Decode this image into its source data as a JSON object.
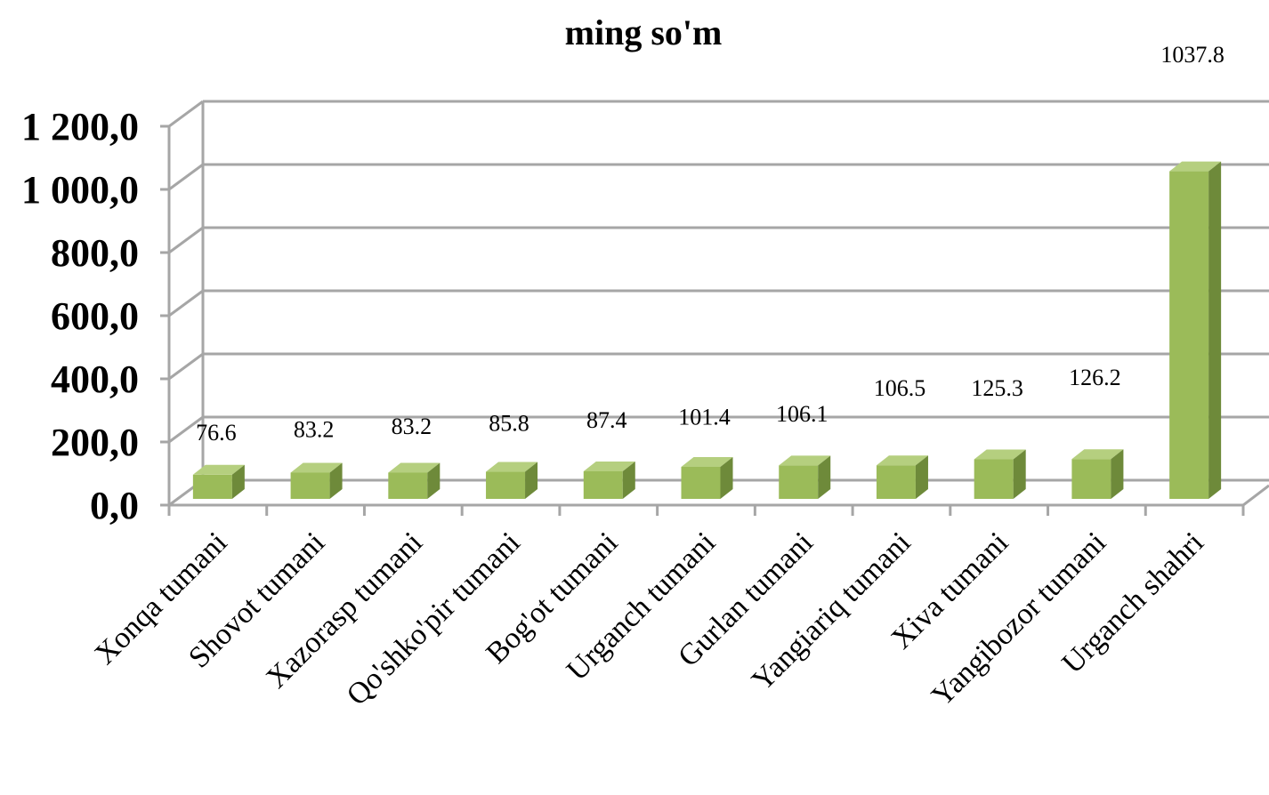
{
  "chart_data": {
    "type": "bar",
    "title": "ming so'm",
    "categories": [
      "Xonqa tumani",
      "Shovot tumani",
      "Xazorasp tumani",
      "Qo'shko'pir tumani",
      "Bog'ot tumani",
      "Urganch tumani",
      "Gurlan tumani",
      "Yangiariq tumani",
      "Xiva tumani",
      "Yangibozor tumani",
      "Urganch shahri"
    ],
    "values": [
      76.6,
      83.2,
      83.2,
      85.8,
      87.4,
      101.4,
      106.1,
      106.5,
      125.3,
      126.2,
      1037.8
    ],
    "data_labels": [
      "76.6",
      "83.2",
      "83.2",
      "85.8",
      "87.4",
      "101.4",
      "106.1",
      "106.5",
      "125.3",
      "126.2",
      "1037.8"
    ],
    "y_ticks": [
      0,
      200,
      400,
      600,
      800,
      1000,
      1200
    ],
    "y_tick_labels": [
      "0,0",
      "200,0",
      "400,0",
      "600,0",
      "800,0",
      "1 000,0",
      "1 200,0"
    ],
    "ylim": [
      0,
      1200
    ],
    "grid": true,
    "legend": "none",
    "style": "3d-column",
    "colors": {
      "bar_front": "#9bbb59",
      "bar_top": "#b5cf7f",
      "bar_side": "#6e8a3a",
      "grid": "#a6a6a6",
      "axis": "#a6a6a6"
    }
  }
}
